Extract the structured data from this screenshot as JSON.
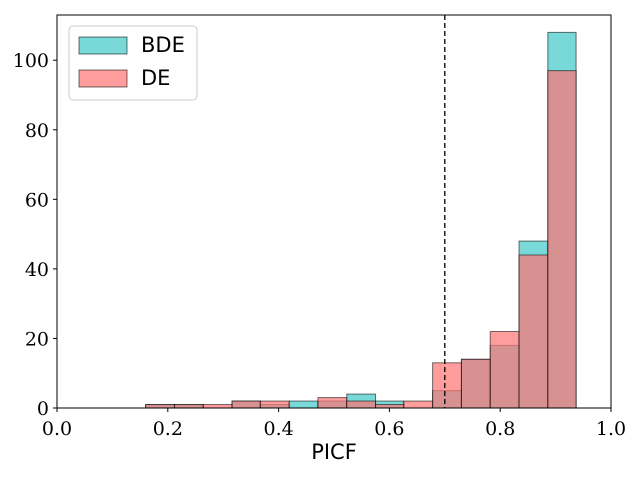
{
  "chart_data": {
    "type": "bar",
    "xlabel": "PICF",
    "ylabel": "",
    "xlim": [
      0.0,
      1.0
    ],
    "ylim": [
      0,
      113
    ],
    "x_ticks": [
      "0.0",
      "0.2",
      "0.4",
      "0.6",
      "0.8",
      "1.0"
    ],
    "y_ticks": [
      "0",
      "20",
      "40",
      "60",
      "80",
      "100"
    ],
    "vline": 0.7,
    "legend": {
      "position": "top-left"
    },
    "bin_edges": [
      0.16,
      0.212,
      0.264,
      0.316,
      0.367,
      0.419,
      0.471,
      0.523,
      0.575,
      0.626,
      0.678,
      0.73,
      0.782,
      0.834,
      0.886,
      0.937
    ],
    "series": [
      {
        "name": "BDE",
        "color": "#40c8c8",
        "values": [
          1,
          1,
          0,
          2,
          1,
          2,
          2,
          4,
          2,
          0,
          5,
          14,
          18,
          48,
          108
        ]
      },
      {
        "name": "DE",
        "color": "#ff7373",
        "values": [
          1,
          1,
          1,
          2,
          2,
          0,
          3,
          2,
          1,
          2,
          13,
          14,
          22,
          44,
          97
        ]
      }
    ]
  }
}
